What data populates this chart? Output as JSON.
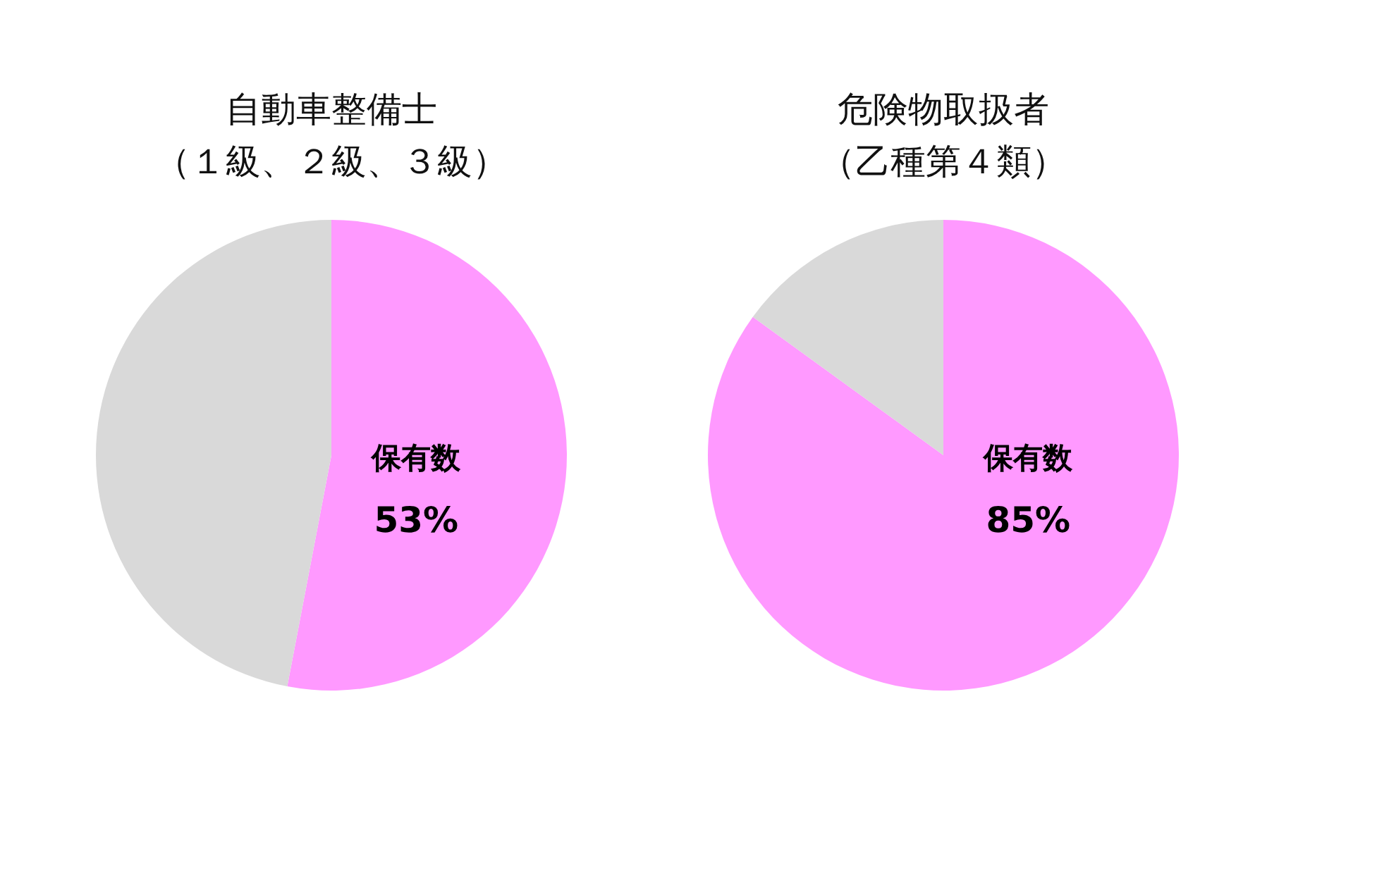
{
  "chart_data": [
    {
      "type": "pie",
      "title": "自動車整備士",
      "subtitle": "（１級、２級、３級）",
      "categories": [
        "保有数",
        null
      ],
      "values": [
        53,
        47
      ],
      "colors": [
        "#ff99ff",
        "#d9d9d9"
      ],
      "value_labels": [
        "53%",
        null
      ]
    },
    {
      "type": "pie",
      "title": "危険物取扱者",
      "subtitle": "（乙種第４類）",
      "categories": [
        "保有数",
        null
      ],
      "values": [
        85,
        15
      ],
      "colors": [
        "#ff99ff",
        "#d9d9d9"
      ],
      "value_labels": [
        "85%",
        null
      ]
    }
  ]
}
